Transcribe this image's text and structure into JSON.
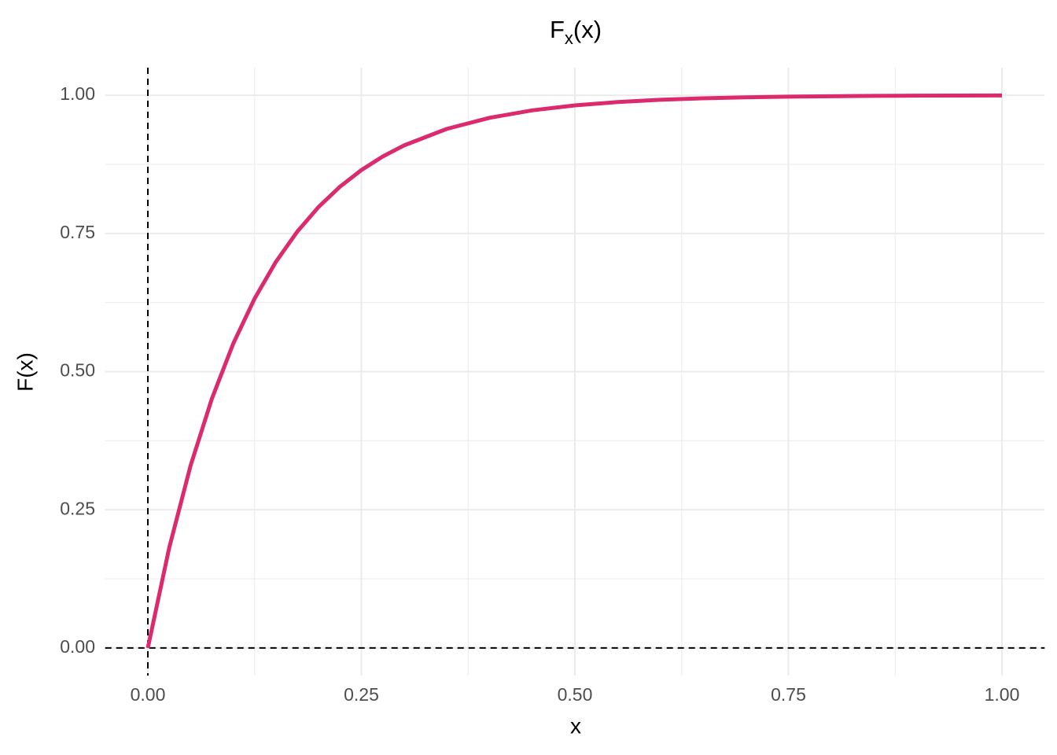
{
  "chart_data": {
    "type": "line",
    "title": "F",
    "title_subscript": "x",
    "title_suffix": "(x)",
    "x_label": "x",
    "y_label": "F(x)",
    "x": [
      0,
      0.025,
      0.05,
      0.075,
      0.1,
      0.125,
      0.15,
      0.175,
      0.2,
      0.225,
      0.25,
      0.275,
      0.3,
      0.35,
      0.4,
      0.45,
      0.5,
      0.55,
      0.6,
      0.65,
      0.7,
      0.75,
      0.8,
      0.85,
      0.9,
      0.95,
      1
    ],
    "values": [
      0,
      0.1813,
      0.3297,
      0.4512,
      0.5507,
      0.6321,
      0.6988,
      0.7534,
      0.7981,
      0.8347,
      0.8647,
      0.8892,
      0.9093,
      0.9392,
      0.9592,
      0.9727,
      0.9817,
      0.9877,
      0.9918,
      0.9945,
      0.9963,
      0.9975,
      0.9983,
      0.9989,
      0.9993,
      0.9995,
      0.9997
    ],
    "color": "#dc2a6e",
    "xlim": [
      -0.05,
      1.05
    ],
    "ylim": [
      -0.05,
      1.05
    ],
    "xticks": [
      {
        "value": 0,
        "label": "0.00"
      },
      {
        "value": 0.25,
        "label": "0.25"
      },
      {
        "value": 0.5,
        "label": "0.50"
      },
      {
        "value": 0.75,
        "label": "0.75"
      },
      {
        "value": 1,
        "label": "1.00"
      }
    ],
    "yticks": [
      {
        "value": 0,
        "label": "0.00"
      },
      {
        "value": 0.25,
        "label": "0.25"
      },
      {
        "value": 0.5,
        "label": "0.50"
      },
      {
        "value": 0.75,
        "label": "0.75"
      },
      {
        "value": 1,
        "label": "1.00"
      }
    ],
    "minor_xticks": [
      0.125,
      0.375,
      0.625,
      0.875
    ],
    "minor_yticks": [
      0.125,
      0.375,
      0.625,
      0.875
    ],
    "vline": 0,
    "hline": 0,
    "grid": true
  }
}
